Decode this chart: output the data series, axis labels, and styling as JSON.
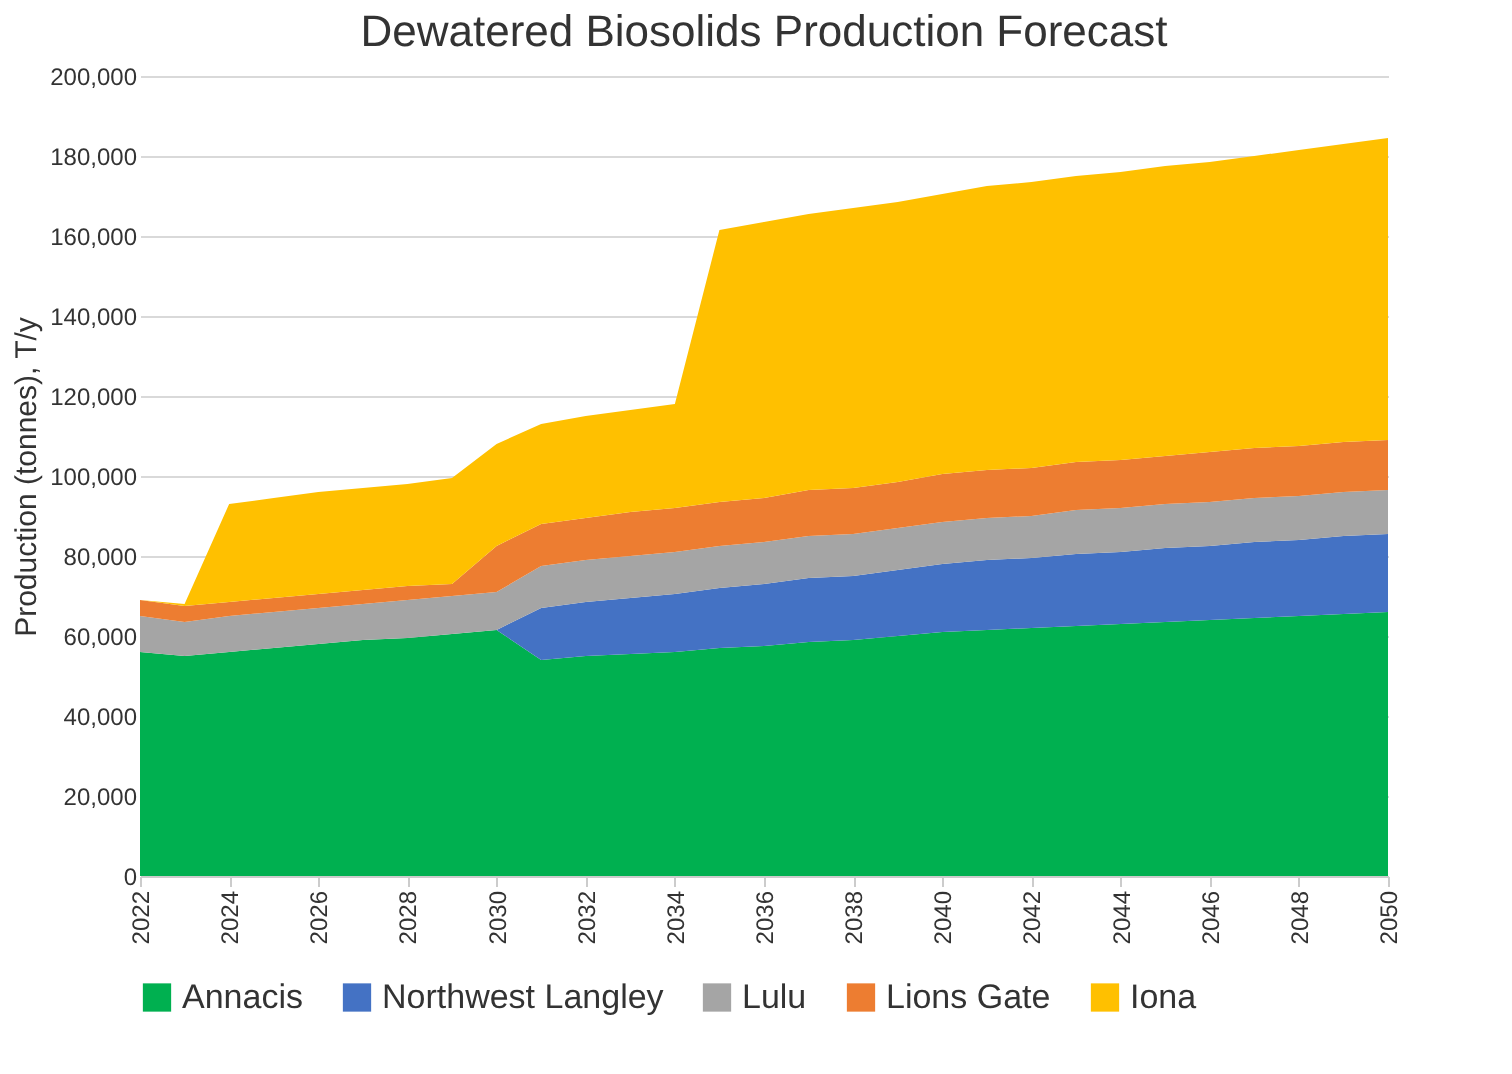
{
  "chart_data": {
    "type": "area",
    "title": "Dewatered Biosolids Production Forecast",
    "ylabel": "Production (tonnes), T/y",
    "stacked": true,
    "grid": "y",
    "legend": "bottom",
    "x": [
      2022,
      2023,
      2024,
      2025,
      2026,
      2027,
      2028,
      2029,
      2030,
      2031,
      2032,
      2033,
      2034,
      2035,
      2036,
      2037,
      2038,
      2039,
      2040,
      2041,
      2042,
      2043,
      2044,
      2045,
      2046,
      2047,
      2048,
      2049,
      2050
    ],
    "xlim": [
      2022,
      2050
    ],
    "xticks": [
      2022,
      2024,
      2026,
      2028,
      2030,
      2032,
      2034,
      2036,
      2038,
      2040,
      2042,
      2044,
      2046,
      2048,
      2050
    ],
    "ylim": [
      0,
      200000
    ],
    "yticks": [
      0,
      {
        "value": 20000,
        "label": "20,000"
      },
      {
        "value": 40000,
        "label": "40,000"
      },
      {
        "value": 60000,
        "label": "60,000"
      },
      {
        "value": 80000,
        "label": "80,000"
      },
      {
        "value": 100000,
        "label": "100,000"
      },
      {
        "value": 120000,
        "label": "120,000"
      },
      {
        "value": 140000,
        "label": "140,000"
      },
      {
        "value": 160000,
        "label": "160,000"
      },
      {
        "value": 180000,
        "label": "180,000"
      },
      {
        "value": 200000,
        "label": "200,000"
      }
    ],
    "series": [
      {
        "name": "Annacis",
        "color": "#00b050",
        "values": [
          56000,
          55000,
          56000,
          57000,
          58000,
          59000,
          59500,
          60500,
          61500,
          54000,
          55000,
          55500,
          56000,
          57000,
          57500,
          58500,
          59000,
          60000,
          61000,
          61500,
          62000,
          62500,
          63000,
          63500,
          64000,
          64500,
          65000,
          65500,
          66000
        ]
      },
      {
        "name": "Northwest Langley",
        "color": "#4472c4",
        "values": [
          0,
          0,
          0,
          0,
          0,
          0,
          0,
          0,
          0,
          13000,
          13500,
          14000,
          14500,
          15000,
          15500,
          16000,
          16000,
          16500,
          17000,
          17500,
          17500,
          18000,
          18000,
          18500,
          18500,
          19000,
          19000,
          19500,
          19500
        ]
      },
      {
        "name": "Lulu",
        "color": "#a5a5a5",
        "values": [
          9000,
          8500,
          9000,
          9000,
          9000,
          9000,
          9500,
          9500,
          9500,
          10500,
          10500,
          10500,
          10500,
          10500,
          10500,
          10500,
          10500,
          10500,
          10500,
          10500,
          10500,
          11000,
          11000,
          11000,
          11000,
          11000,
          11000,
          11000,
          11000
        ]
      },
      {
        "name": "Lions Gate",
        "color": "#ed7d31",
        "values": [
          4000,
          4000,
          3500,
          3500,
          3500,
          3500,
          3500,
          3000,
          11500,
          10500,
          10500,
          11000,
          11000,
          11000,
          11000,
          11500,
          11500,
          11500,
          12000,
          12000,
          12000,
          12000,
          12000,
          12000,
          12500,
          12500,
          12500,
          12500,
          12500
        ]
      },
      {
        "name": "Iona",
        "color": "#ffc000",
        "values": [
          0,
          500,
          24500,
          25000,
          25500,
          25500,
          25500,
          26500,
          25500,
          25000,
          25500,
          25500,
          26000,
          68000,
          69000,
          69000,
          70000,
          70000,
          70000,
          71000,
          71500,
          71500,
          72000,
          72500,
          72500,
          73000,
          74000,
          74500,
          75500
        ]
      }
    ]
  }
}
